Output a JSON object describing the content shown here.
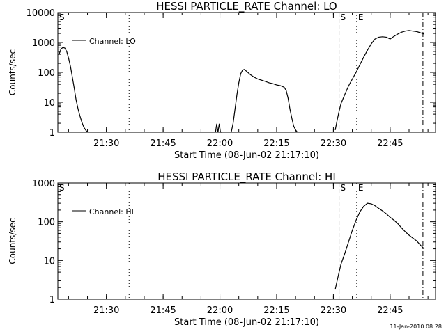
{
  "footer_timestamp": "11-Jan-2010 08:28",
  "chart_data": [
    {
      "type": "line",
      "title": "HESSI PARTICLE_RATE Channel: LO",
      "xlabel": "Start Time (08-Jun-02 21:17:10)",
      "ylabel": "Counts/sec",
      "yscale": "log",
      "ylim": [
        1,
        10000
      ],
      "xlim": [
        "21:17:10",
        "22:57:00"
      ],
      "x_ticks": [
        "21:30",
        "21:45",
        "22:00",
        "22:15",
        "22:30",
        "22:45"
      ],
      "y_ticks": [
        "1",
        "10",
        "100",
        "1000",
        "10000"
      ],
      "legend": [
        "Channel: LO"
      ],
      "legend_position": "top-left",
      "markers": [
        {
          "label": "S",
          "time": "21:17:10",
          "style": "none"
        },
        {
          "label": "",
          "time": "21:36:00",
          "style": "dotted"
        },
        {
          "label": "S",
          "time": "22:31:30",
          "style": "dashed"
        },
        {
          "label": "E",
          "time": "22:36:10",
          "style": "dotted"
        },
        {
          "label": "",
          "time": "22:53:40",
          "style": "dash-dot"
        }
      ],
      "series": [
        {
          "name": "Channel: LO",
          "segments": [
            {
              "time": [
                "21:17:30",
                "21:18:00",
                "21:18:30",
                "21:19:00",
                "21:19:30",
                "21:20:00",
                "21:20:30",
                "21:21:00",
                "21:21:30",
                "21:22:00",
                "21:22:30",
                "21:23:00",
                "21:23:30",
                "21:24:00",
                "21:24:30",
                "21:25:00"
              ],
              "values": [
                400,
                600,
                680,
                650,
                500,
                300,
                160,
                70,
                30,
                12,
                6,
                3.5,
                2.2,
                1.5,
                1.2,
                1.0
              ]
            },
            {
              "time": [
                "21:58:50",
                "21:59:10",
                "21:59:30",
                "21:59:50",
                "22:00:10",
                "22:00:30"
              ],
              "values": [
                1,
                1.9,
                1,
                1.9,
                1,
                1
              ]
            },
            {
              "time": [
                "22:03:00",
                "22:03:30",
                "22:04:00",
                "22:04:30",
                "22:05:00",
                "22:05:30",
                "22:06:00",
                "22:06:30",
                "22:07:00",
                "22:08:00",
                "22:09:00",
                "22:10:00",
                "22:11:00",
                "22:12:00",
                "22:13:00",
                "22:14:00",
                "22:15:00",
                "22:16:00",
                "22:17:00",
                "22:17:30",
                "22:18:00",
                "22:18:30",
                "22:19:00",
                "22:19:30",
                "22:20:00",
                "22:20:30"
              ],
              "values": [
                1,
                2,
                6,
                18,
                45,
                90,
                120,
                125,
                110,
                85,
                70,
                60,
                55,
                50,
                45,
                42,
                38,
                36,
                32,
                25,
                14,
                6,
                3,
                1.6,
                1.2,
                1
              ]
            },
            {
              "time": [
                "22:30:30",
                "22:31:00",
                "22:31:30",
                "22:32:00",
                "22:33:00",
                "22:34:00",
                "22:35:00",
                "22:36:00",
                "22:37:00",
                "22:38:00",
                "22:39:00",
                "22:40:00",
                "22:41:00",
                "22:42:00",
                "22:43:00",
                "22:44:00",
                "22:45:00",
                "22:46:00",
                "22:47:00",
                "22:48:00",
                "22:49:00",
                "22:50:00",
                "22:51:00",
                "22:52:00",
                "22:53:00",
                "22:54:00"
              ],
              "values": [
                1.2,
                2.5,
                5,
                9,
                18,
                35,
                60,
                100,
                180,
                320,
                550,
                900,
                1300,
                1500,
                1550,
                1500,
                1300,
                1600,
                1900,
                2200,
                2400,
                2500,
                2400,
                2300,
                2100,
                1900
              ]
            }
          ]
        }
      ]
    },
    {
      "type": "line",
      "title": "HESSI PARTICLE_RATE Channel: HI",
      "xlabel": "Start Time (08-Jun-02 21:17:10)",
      "ylabel": "Counts/sec",
      "yscale": "log",
      "ylim": [
        1,
        1000
      ],
      "xlim": [
        "21:17:10",
        "22:57:00"
      ],
      "x_ticks": [
        "21:30",
        "21:45",
        "22:00",
        "22:15",
        "22:30",
        "22:45"
      ],
      "y_ticks": [
        "1",
        "10",
        "100",
        "1000"
      ],
      "legend": [
        "Channel: HI"
      ],
      "legend_position": "top-left",
      "markers": [
        {
          "label": "S",
          "time": "21:17:10",
          "style": "none"
        },
        {
          "label": "",
          "time": "21:36:00",
          "style": "dotted"
        },
        {
          "label": "S",
          "time": "22:31:30",
          "style": "dashed"
        },
        {
          "label": "E",
          "time": "22:36:10",
          "style": "dotted"
        },
        {
          "label": "",
          "time": "22:53:40",
          "style": "dash-dot"
        }
      ],
      "series": [
        {
          "name": "Channel: HI",
          "segments": [
            {
              "time": [
                "22:30:30",
                "22:31:00",
                "22:31:30",
                "22:32:00",
                "22:33:00",
                "22:34:00",
                "22:35:00",
                "22:36:00",
                "22:37:00",
                "22:38:00",
                "22:39:00",
                "22:40:00",
                "22:41:00",
                "22:42:00",
                "22:43:00",
                "22:44:00",
                "22:45:00",
                "22:46:00",
                "22:47:00",
                "22:48:00",
                "22:49:00",
                "22:50:00",
                "22:51:00",
                "22:52:00",
                "22:53:00",
                "22:54:00"
              ],
              "values": [
                1.8,
                3,
                5,
                8,
                15,
                30,
                60,
                110,
                180,
                250,
                300,
                290,
                260,
                220,
                190,
                160,
                130,
                110,
                90,
                70,
                55,
                45,
                38,
                32,
                25,
                20
              ]
            }
          ]
        }
      ]
    }
  ]
}
